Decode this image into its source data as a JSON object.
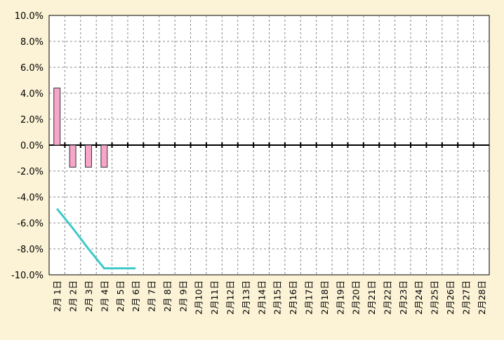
{
  "chart_data": {
    "type": "bar-line",
    "categories": [
      "2月 1日",
      "2月 2日",
      "2月 3日",
      "2月 4日",
      "2月 5日",
      "2月 6日",
      "2月 7日",
      "2月 8日",
      "2月 9日",
      "2月10日",
      "2月11日",
      "2月12日",
      "2月13日",
      "2月14日",
      "2月15日",
      "2月16日",
      "2月17日",
      "2月18日",
      "2月19日",
      "2月20日",
      "2月21日",
      "2月22日",
      "2月23日",
      "2月24日",
      "2月25日",
      "2月26日",
      "2月27日",
      "2月28日"
    ],
    "series": [
      {
        "type": "bar",
        "color": "#f7a6c9",
        "values": [
          4.4,
          -1.7,
          -1.7,
          -1.7,
          null,
          null,
          null,
          null,
          null,
          null,
          null,
          null,
          null,
          null,
          null,
          null,
          null,
          null,
          null,
          null,
          null,
          null,
          null,
          null,
          null,
          null,
          null,
          null
        ]
      },
      {
        "type": "line",
        "color": "#3ec9c9",
        "values": [
          -4.9,
          -6.4,
          -8.0,
          -9.5,
          -9.5,
          -9.5,
          null,
          null,
          null,
          null,
          null,
          null,
          null,
          null,
          null,
          null,
          null,
          null,
          null,
          null,
          null,
          null,
          null,
          null,
          null,
          null,
          null,
          null
        ]
      }
    ],
    "ylim": [
      -10,
      10
    ],
    "yticks": [
      {
        "value": -10,
        "label": "-10.0%"
      },
      {
        "value": -8,
        "label": "-8.0%"
      },
      {
        "value": -6,
        "label": "-6.0%"
      },
      {
        "value": -4,
        "label": "-4.0%"
      },
      {
        "value": -2,
        "label": "-2.0%"
      },
      {
        "value": 0,
        "label": "0.0%"
      },
      {
        "value": 2,
        "label": "2.0%"
      },
      {
        "value": 4,
        "label": "4.0%"
      },
      {
        "value": 6,
        "label": "6.0%"
      },
      {
        "value": 8,
        "label": "8.0%"
      },
      {
        "value": 10,
        "label": "10.0%"
      }
    ],
    "grid": true
  }
}
